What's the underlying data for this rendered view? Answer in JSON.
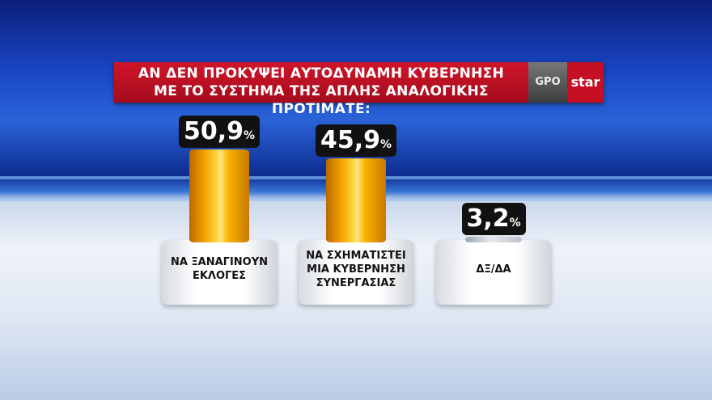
{
  "title": {
    "line1": "ΑΝ ΔΕΝ ΠΡΟΚΥΨΕΙ ΑΥΤΟΔΥΝΑΜΗ ΚΥΒΕΡΝΗΣΗ",
    "line2": "ΜΕ ΤΟ ΣΥΣΤΗΜΑ ΤΗΣ ΑΠΛΗΣ ΑΝΑΛΟΓΙΚΗΣ ΠΡΟΤΙΜΑΤΕ:"
  },
  "logos": {
    "gpo": "GPO",
    "star": "star"
  },
  "chart_data": {
    "type": "bar",
    "categories": [
      "ΝΑ ΞΑΝΑΓΙΝΟΥΝ ΕΚΛΟΓΕΣ",
      "ΝΑ ΣΧΗΜΑΤΙΣΤΕΙ ΜΙΑ ΚΥΒΕΡΝΗΣΗ ΣΥΝΕΡΓΑΣΙΑΣ",
      "ΔΞ/ΔΑ"
    ],
    "values": [
      50.9,
      45.9,
      3.2
    ],
    "value_labels": [
      "50,9",
      "45,9",
      "3,2"
    ],
    "unit": "%",
    "bar_color": "#f5a800"
  }
}
